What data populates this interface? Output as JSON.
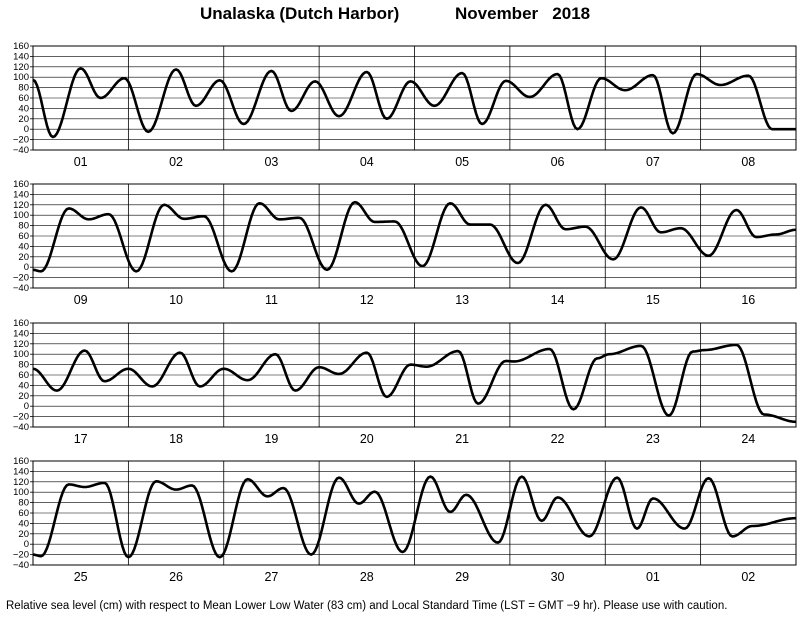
{
  "title_location": "Unalaska (Dutch Harbor)",
  "title_month": "November   2018",
  "footer_note": "Relative sea level (cm) with respect to Mean Lower Low Water (83 cm) and Local Standard Time (LST = GMT −9 hr). Please use with caution.",
  "chart_data": {
    "type": "line",
    "units": "cm",
    "ylim": [
      -40,
      160
    ],
    "yticks": [
      -40,
      -20,
      0,
      20,
      40,
      60,
      80,
      100,
      120,
      140,
      160
    ],
    "ytick_labels": [
      "−40",
      "−20",
      "0",
      "20",
      "40",
      "60",
      "80",
      "100",
      "120",
      "140",
      "160"
    ],
    "grid": true,
    "hours_per_panel": 192,
    "panels": [
      {
        "days": [
          "01",
          "02",
          "03",
          "04",
          "05",
          "06",
          "07",
          "08"
        ],
        "extrema": [
          [
            0,
            95
          ],
          [
            5,
            -15
          ],
          [
            12,
            117
          ],
          [
            17,
            60
          ],
          [
            23,
            98
          ],
          [
            29,
            -5
          ],
          [
            36,
            115
          ],
          [
            41,
            45
          ],
          [
            47,
            94
          ],
          [
            53,
            10
          ],
          [
            60,
            112
          ],
          [
            65,
            35
          ],
          [
            71,
            92
          ],
          [
            77,
            25
          ],
          [
            84,
            110
          ],
          [
            89,
            20
          ],
          [
            95,
            92
          ],
          [
            101,
            45
          ],
          [
            108,
            108
          ],
          [
            113,
            10
          ],
          [
            119,
            93
          ],
          [
            125,
            62
          ],
          [
            132,
            106
          ],
          [
            137,
            0
          ],
          [
            143,
            98
          ],
          [
            149,
            75
          ],
          [
            156,
            104
          ],
          [
            161,
            -8
          ],
          [
            167,
            106
          ],
          [
            173,
            85
          ],
          [
            180,
            103
          ],
          [
            186,
            0
          ]
        ]
      },
      {
        "days": [
          "09",
          "10",
          "11",
          "12",
          "13",
          "14",
          "15",
          "16"
        ],
        "extrema": [
          [
            0,
            -5
          ],
          [
            2,
            -8
          ],
          [
            9,
            113
          ],
          [
            14,
            92
          ],
          [
            19,
            102
          ],
          [
            26,
            -8
          ],
          [
            33,
            120
          ],
          [
            38,
            93
          ],
          [
            43,
            98
          ],
          [
            50,
            -8
          ],
          [
            57,
            123
          ],
          [
            62,
            92
          ],
          [
            67,
            95
          ],
          [
            74,
            -5
          ],
          [
            81,
            125
          ],
          [
            86,
            87
          ],
          [
            91,
            88
          ],
          [
            98,
            2
          ],
          [
            105,
            123
          ],
          [
            110,
            82
          ],
          [
            115,
            82
          ],
          [
            122,
            8
          ],
          [
            129,
            120
          ],
          [
            134,
            73
          ],
          [
            139,
            78
          ],
          [
            146,
            15
          ],
          [
            153,
            115
          ],
          [
            158,
            67
          ],
          [
            163,
            75
          ],
          [
            170,
            22
          ],
          [
            177,
            110
          ],
          [
            182,
            58
          ],
          [
            187,
            63
          ],
          [
            192,
            72
          ]
        ]
      },
      {
        "days": [
          "17",
          "18",
          "19",
          "20",
          "21",
          "22",
          "23",
          "24"
        ],
        "extrema": [
          [
            0,
            72
          ],
          [
            6,
            30
          ],
          [
            13,
            107
          ],
          [
            18,
            48
          ],
          [
            24,
            72
          ],
          [
            30,
            38
          ],
          [
            37,
            103
          ],
          [
            42,
            38
          ],
          [
            48,
            72
          ],
          [
            54,
            50
          ],
          [
            61,
            100
          ],
          [
            66,
            30
          ],
          [
            72,
            75
          ],
          [
            77,
            62
          ],
          [
            84,
            103
          ],
          [
            89,
            18
          ],
          [
            95,
            80
          ],
          [
            99,
            76
          ],
          [
            107,
            106
          ],
          [
            112,
            5
          ],
          [
            119,
            87
          ],
          [
            121,
            86
          ],
          [
            130,
            110
          ],
          [
            136,
            -6
          ],
          [
            142,
            92
          ],
          [
            145,
            100
          ],
          [
            153,
            116
          ],
          [
            160,
            -18
          ],
          [
            166,
            105
          ],
          [
            169,
            108
          ],
          [
            177,
            118
          ],
          [
            184,
            -16
          ],
          [
            192,
            -30
          ]
        ]
      },
      {
        "days": [
          "25",
          "26",
          "27",
          "28",
          "29",
          "30",
          "01",
          "02"
        ],
        "extrema": [
          [
            0,
            -20
          ],
          [
            2,
            -23
          ],
          [
            9,
            115
          ],
          [
            13,
            110
          ],
          [
            18,
            118
          ],
          [
            24,
            -25
          ],
          [
            31,
            121
          ],
          [
            36,
            105
          ],
          [
            40,
            113
          ],
          [
            47,
            -25
          ],
          [
            54,
            125
          ],
          [
            59,
            92
          ],
          [
            63,
            108
          ],
          [
            70,
            -20
          ],
          [
            77,
            128
          ],
          [
            82,
            78
          ],
          [
            86,
            101
          ],
          [
            93,
            -15
          ],
          [
            100,
            130
          ],
          [
            105,
            62
          ],
          [
            109,
            95
          ],
          [
            117,
            3
          ],
          [
            123,
            130
          ],
          [
            128,
            45
          ],
          [
            132,
            90
          ],
          [
            140,
            15
          ],
          [
            147,
            128
          ],
          [
            152,
            30
          ],
          [
            156,
            88
          ],
          [
            164,
            30
          ],
          [
            170,
            127
          ],
          [
            176,
            15
          ],
          [
            181,
            35
          ],
          [
            192,
            50
          ]
        ]
      }
    ]
  }
}
